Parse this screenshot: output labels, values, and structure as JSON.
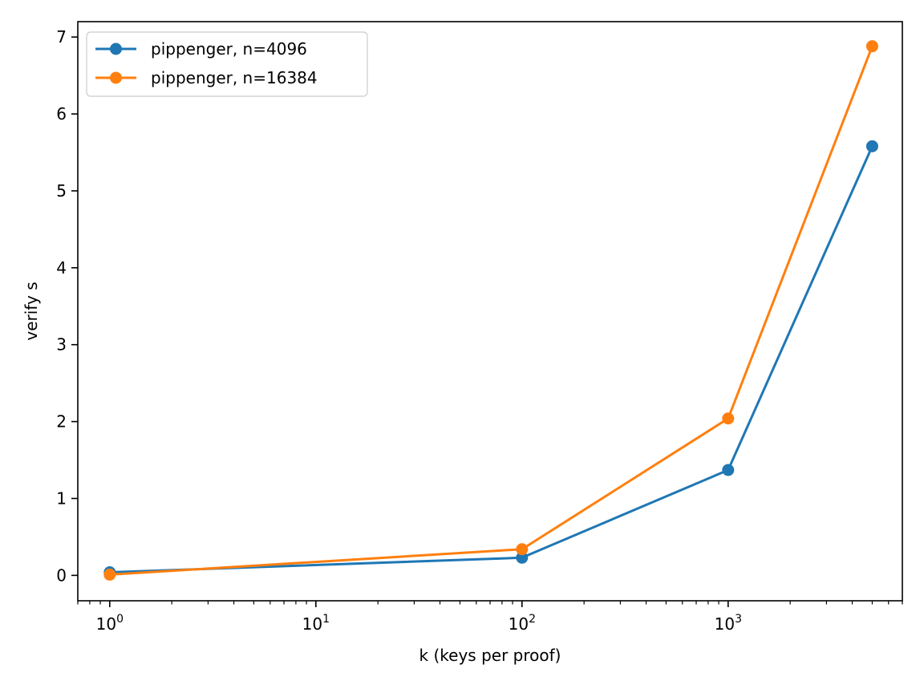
{
  "chart_data": {
    "type": "line",
    "xlabel": "k (keys per proof)",
    "ylabel": "verify s",
    "xscale": "log",
    "xlim": [
      0.7,
      7000
    ],
    "ylim": [
      -0.33,
      7.2
    ],
    "x_ticks": [
      {
        "value": 1,
        "base": "10",
        "exp": "0"
      },
      {
        "value": 10,
        "base": "10",
        "exp": "1"
      },
      {
        "value": 100,
        "base": "10",
        "exp": "2"
      },
      {
        "value": 1000,
        "base": "10",
        "exp": "3"
      }
    ],
    "y_ticks": [
      0,
      1,
      2,
      3,
      4,
      5,
      6,
      7
    ],
    "x": [
      1,
      100,
      1000,
      5000
    ],
    "series": [
      {
        "name": "pippenger, n=4096",
        "color": "#1f77b4",
        "values": [
          0.04,
          0.23,
          1.37,
          5.58
        ]
      },
      {
        "name": "pippenger, n=16384",
        "color": "#ff7f0e",
        "values": [
          0.01,
          0.34,
          2.04,
          6.88
        ]
      }
    ],
    "legend_position": "upper-left",
    "grid": false
  }
}
